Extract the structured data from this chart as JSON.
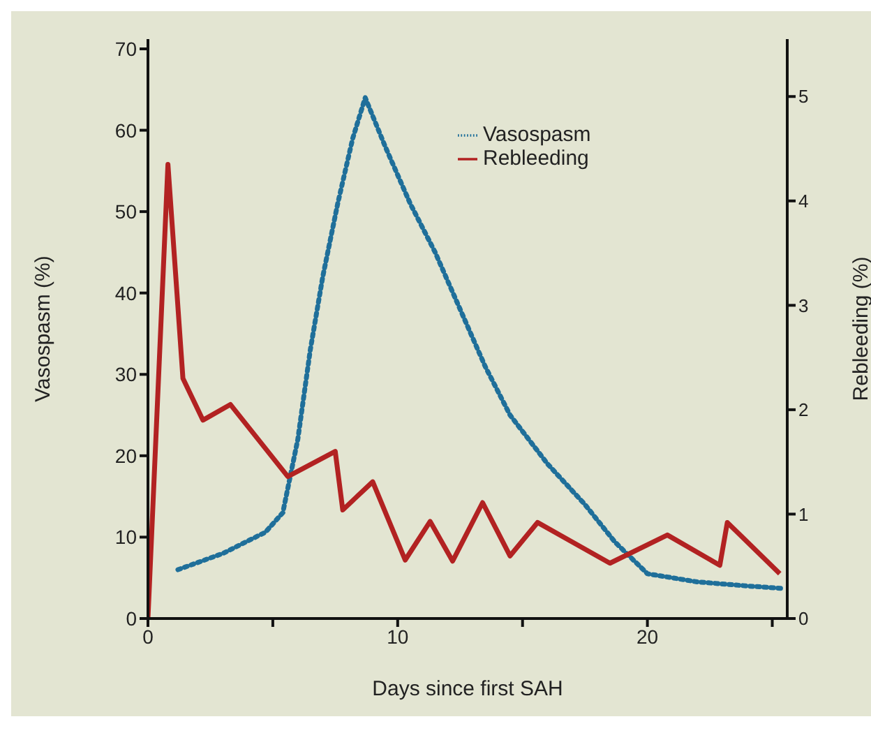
{
  "chart_data": {
    "type": "line",
    "xlabel": "Days since first SAH",
    "ylabel": "Vasospasm (%)",
    "y2label": "Rebleeding (%)",
    "xlim": [
      0,
      25.6
    ],
    "xticks": [
      0,
      {
        "value": 5,
        "label": null
      },
      10,
      {
        "value": 15,
        "label": null
      },
      20,
      {
        "value": 25,
        "label": null
      }
    ],
    "ylim": [
      0,
      71.2
    ],
    "yticks": [
      0,
      10,
      20,
      30,
      40,
      50,
      60,
      70
    ],
    "y2lim": [
      0,
      5.55
    ],
    "y2ticks": [
      0,
      1,
      2,
      3,
      4,
      5
    ],
    "legend": "top",
    "marker": "none",
    "series": [
      {
        "name": "Vasospasm",
        "color": "#1f6f9a",
        "line_style": "dotted",
        "x": [
          1.2,
          3,
          4.7,
          5.4,
          6,
          6.5,
          7,
          7.6,
          8.2,
          8.7,
          9.5,
          10.5,
          11.5,
          12.5,
          13.5,
          14.5,
          16,
          17.5,
          18.7,
          20,
          22,
          24,
          25.4
        ],
        "values": [
          6,
          8,
          10.6,
          13,
          22,
          33,
          42,
          51,
          59,
          64,
          58,
          51,
          45,
          38,
          31,
          25,
          19,
          14,
          9.4,
          5.5,
          4.5,
          4,
          3.7
        ]
      },
      {
        "name": "Rebleeding",
        "color": "#b22222",
        "line_style": "solid",
        "axis": "y2",
        "x": [
          0,
          0.8,
          1.4,
          2.2,
          3.3,
          5.6,
          7.5,
          7.8,
          9,
          10.3,
          11.3,
          12.2,
          13.4,
          14.5,
          15.6,
          18.5,
          20.8,
          22.9,
          23.2,
          25.3
        ],
        "values": [
          0,
          4.35,
          2.3,
          1.9,
          2.05,
          1.36,
          1.6,
          1.04,
          1.31,
          0.56,
          0.93,
          0.55,
          1.11,
          0.6,
          0.92,
          0.53,
          0.8,
          0.51,
          0.92,
          0.43
        ]
      }
    ]
  }
}
